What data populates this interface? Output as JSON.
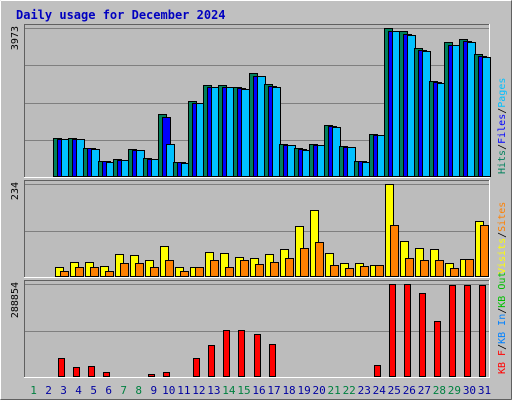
{
  "chart_data": {
    "type": "bar",
    "title": "Daily usage for December 2024",
    "colors": {
      "background": "#c0c0c0",
      "panel": "#bcbcbc",
      "gridline": "#7f7f7f",
      "title": "#0000c0",
      "hits": "#00805c",
      "files": "#0000ff",
      "pages": "#00c0ff",
      "visits": "#ffff00",
      "sites": "#ff8000",
      "kb_in": "#0080ff",
      "kb_out": "#00c000",
      "kbytes": "#ff0000",
      "weekend_day": "#008040",
      "weekday": "#0000a0"
    },
    "x": [
      "1",
      "2",
      "3",
      "4",
      "5",
      "6",
      "7",
      "8",
      "9",
      "10",
      "11",
      "12",
      "13",
      "14",
      "15",
      "16",
      "17",
      "18",
      "19",
      "20",
      "21",
      "22",
      "23",
      "24",
      "25",
      "26",
      "27",
      "28",
      "29",
      "30",
      "31"
    ],
    "weekend_days": [
      "1",
      "7",
      "8",
      "14",
      "15",
      "21",
      "22",
      "28",
      "29"
    ],
    "panels": [
      {
        "ymax_label": "3973",
        "ymax": 3973,
        "legend": [
          "Hits",
          "Files",
          "Pages"
        ],
        "series": [
          {
            "name": "Hits",
            "values": [
              0,
              0,
              1030,
              1030,
              780,
              430,
              470,
              740,
              510,
              1670,
              400,
              2030,
              2460,
              2460,
              2410,
              2760,
              2470,
              870,
              760,
              880,
              1380,
              820,
              430,
              1150,
              3973,
              3880,
              3450,
              2570,
              3600,
              3690,
              3290
            ]
          },
          {
            "name": "Files",
            "values": [
              0,
              0,
              1010,
              1010,
              760,
              420,
              460,
              720,
              490,
              1590,
              390,
              1980,
              2410,
              2410,
              2360,
              2700,
              2420,
              850,
              740,
              860,
              1350,
              800,
              420,
              1120,
              3900,
              3810,
              3380,
              2520,
              3530,
              3620,
              3230
            ]
          },
          {
            "name": "Pages",
            "values": [
              0,
              0,
              1000,
              1000,
              750,
              410,
              460,
              710,
              480,
              890,
              380,
              1960,
              2390,
              2390,
              2340,
              2680,
              2400,
              840,
              730,
              850,
              1330,
              790,
              410,
              1110,
              3880,
              3790,
              3360,
              2500,
              3510,
              3600,
              3210
            ]
          }
        ]
      },
      {
        "ymax_label": "234",
        "ymax": 234,
        "legend": [
          "Visits",
          "Sites"
        ],
        "series": [
          {
            "name": "Visits",
            "values": [
              0,
              0,
              24,
              38,
              38,
              28,
              58,
              56,
              44,
              78,
              26,
              26,
              62,
              60,
              51,
              48,
              58,
              70,
              128,
              168,
              60,
              36,
              36,
              30,
              234,
              90,
              74,
              70,
              34,
              45,
              142
            ]
          },
          {
            "name": "Sites",
            "values": [
              0,
              0,
              15,
              25,
              25,
              14,
              34,
              34,
              25,
              42,
              16,
              26,
              44,
              24,
              42,
              32,
              37,
              48,
              72,
              88,
              31,
              23,
              28,
              30,
              132,
              48,
              42,
              42,
              22,
              45,
              132
            ]
          }
        ]
      },
      {
        "ymax_label": "288854",
        "ymax": 288854,
        "legend": [
          "KB F",
          "KB In",
          "KB Out"
        ],
        "series": [
          {
            "name": "KB F",
            "values": [
              0,
              0,
              58000,
              31000,
              34000,
              17000,
              4000,
              4000,
              10000,
              17000,
              2000,
              58000,
              98000,
              146000,
              146000,
              134000,
              103000,
              4000,
              4000,
              4000,
              4000,
              4000,
              4000,
              38000,
              288854,
              288854,
              260000,
              175000,
              285000,
              285000,
              285000
            ]
          }
        ]
      }
    ]
  }
}
